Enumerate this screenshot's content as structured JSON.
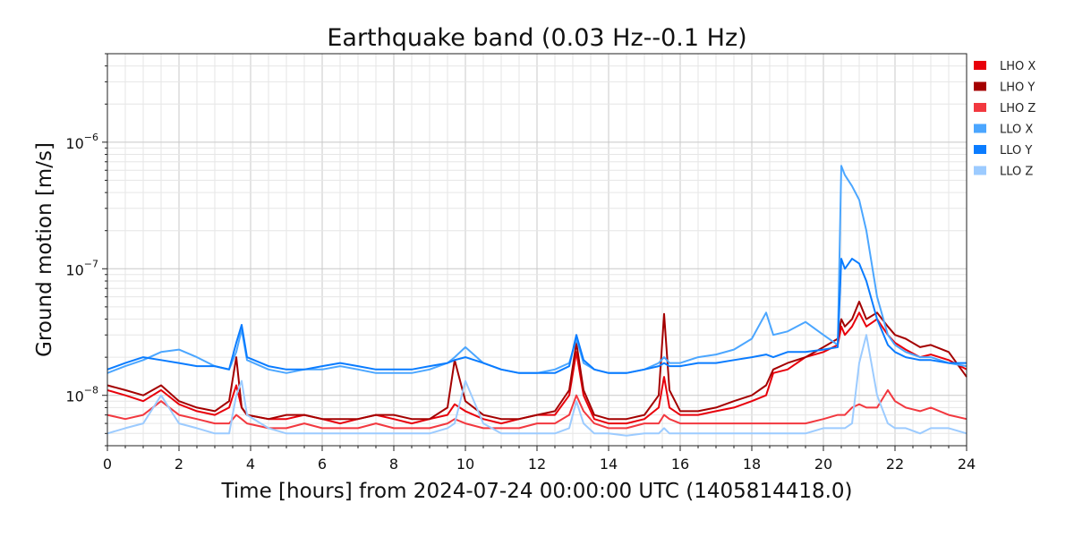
{
  "chart_data": {
    "type": "line",
    "title": "Earthquake band (0.03 Hz--0.1 Hz)",
    "xlabel": "Time [hours] from 2024-07-24 00:00:00 UTC (1405814418.0)",
    "ylabel": "Ground motion [m/s]",
    "xlim": [
      0,
      24
    ],
    "ylim": [
      4e-09,
      5e-06
    ],
    "yscale": "log",
    "grid": true,
    "legend_position": "right-outside-top",
    "x_ticks": [
      {
        "value": 0,
        "label": "0"
      },
      {
        "value": 2,
        "label": "2"
      },
      {
        "value": 4,
        "label": "4"
      },
      {
        "value": 6,
        "label": "6"
      },
      {
        "value": 8,
        "label": "8"
      },
      {
        "value": 10,
        "label": "10"
      },
      {
        "value": 12,
        "label": "12"
      },
      {
        "value": 14,
        "label": "14"
      },
      {
        "value": 16,
        "label": "16"
      },
      {
        "value": 18,
        "label": "18"
      },
      {
        "value": 20,
        "label": "20"
      },
      {
        "value": 22,
        "label": "22"
      },
      {
        "value": 24,
        "label": "24"
      }
    ],
    "y_ticks": [
      {
        "value": 1e-08,
        "base": "10",
        "exp": "−8"
      },
      {
        "value": 1e-07,
        "base": "10",
        "exp": "−7"
      },
      {
        "value": 1e-06,
        "base": "10",
        "exp": "−6"
      }
    ],
    "x": [
      0,
      0.5,
      1,
      1.5,
      2,
      2.5,
      3,
      3.4,
      3.6,
      3.75,
      3.9,
      4.5,
      5,
      5.5,
      6,
      6.5,
      7,
      7.5,
      8,
      8.5,
      9,
      9.5,
      9.7,
      10,
      10.5,
      11,
      11.5,
      12,
      12.5,
      12.9,
      13.1,
      13.3,
      13.6,
      14,
      14.5,
      15,
      15.4,
      15.55,
      15.7,
      16,
      16.5,
      17,
      17.5,
      18,
      18.4,
      18.6,
      19,
      19.5,
      20,
      20.4,
      20.5,
      20.6,
      20.8,
      21,
      21.2,
      21.5,
      21.8,
      22,
      22.3,
      22.7,
      23,
      23.5,
      24
    ],
    "series": [
      {
        "name": "LHO X",
        "color": "#e8000b",
        "values": [
          1.1e-08,
          1e-08,
          9e-09,
          1.1e-08,
          8.5e-09,
          7.5e-09,
          7e-09,
          8e-09,
          1.2e-08,
          8e-09,
          7e-09,
          6.5e-09,
          6.5e-09,
          7e-09,
          6.5e-09,
          6e-09,
          6.5e-09,
          7e-09,
          6.5e-09,
          6e-09,
          6.5e-09,
          7e-09,
          8.5e-09,
          7.5e-09,
          6.5e-09,
          6e-09,
          6.5e-09,
          7e-09,
          7e-09,
          1e-08,
          2.2e-08,
          1e-08,
          6.5e-09,
          6e-09,
          6e-09,
          6.5e-09,
          8e-09,
          1.4e-08,
          8e-09,
          7e-09,
          7e-09,
          7.5e-09,
          8e-09,
          9e-09,
          1e-08,
          1.5e-08,
          1.6e-08,
          2e-08,
          2.2e-08,
          2.5e-08,
          3.5e-08,
          3e-08,
          3.5e-08,
          4.5e-08,
          3.5e-08,
          4e-08,
          3e-08,
          2.6e-08,
          2.3e-08,
          2e-08,
          2.1e-08,
          1.9e-08,
          1.6e-08
        ]
      },
      {
        "name": "LHO Y",
        "color": "#a40000",
        "values": [
          1.2e-08,
          1.1e-08,
          1e-08,
          1.2e-08,
          9e-09,
          8e-09,
          7.5e-09,
          9e-09,
          2e-08,
          8e-09,
          7e-09,
          6.5e-09,
          7e-09,
          7e-09,
          6.5e-09,
          6.5e-09,
          6.5e-09,
          7e-09,
          7e-09,
          6.5e-09,
          6.5e-09,
          8e-09,
          1.9e-08,
          9e-09,
          7e-09,
          6.5e-09,
          6.5e-09,
          7e-09,
          7.5e-09,
          1.1e-08,
          2.6e-08,
          1.1e-08,
          7e-09,
          6.5e-09,
          6.5e-09,
          7e-09,
          1e-08,
          4.4e-08,
          1.1e-08,
          7.5e-09,
          7.5e-09,
          8e-09,
          9e-09,
          1e-08,
          1.2e-08,
          1.6e-08,
          1.8e-08,
          2e-08,
          2.4e-08,
          2.8e-08,
          4e-08,
          3.5e-08,
          4e-08,
          5.5e-08,
          4e-08,
          4.5e-08,
          3.5e-08,
          3e-08,
          2.8e-08,
          2.4e-08,
          2.5e-08,
          2.2e-08,
          1.4e-08
        ]
      },
      {
        "name": "LHO Z",
        "color": "#f2383f",
        "values": [
          7e-09,
          6.5e-09,
          7e-09,
          9e-09,
          7e-09,
          6.5e-09,
          6e-09,
          6e-09,
          7e-09,
          6.5e-09,
          6e-09,
          5.5e-09,
          5.5e-09,
          6e-09,
          5.5e-09,
          5.5e-09,
          5.5e-09,
          6e-09,
          5.5e-09,
          5.5e-09,
          5.5e-09,
          6e-09,
          6.5e-09,
          6e-09,
          5.5e-09,
          5.5e-09,
          5.5e-09,
          6e-09,
          6e-09,
          7e-09,
          1e-08,
          7.5e-09,
          6e-09,
          5.5e-09,
          5.5e-09,
          6e-09,
          6e-09,
          7e-09,
          6.5e-09,
          6e-09,
          6e-09,
          6e-09,
          6e-09,
          6e-09,
          6e-09,
          6e-09,
          6e-09,
          6e-09,
          6.5e-09,
          7e-09,
          7e-09,
          7e-09,
          8e-09,
          8.5e-09,
          8e-09,
          8e-09,
          1.1e-08,
          9e-09,
          8e-09,
          7.5e-09,
          8e-09,
          7e-09,
          6.5e-09
        ]
      },
      {
        "name": "LLO X",
        "color": "#4ba6ff",
        "values": [
          1.5e-08,
          1.7e-08,
          1.9e-08,
          2.2e-08,
          2.3e-08,
          2e-08,
          1.7e-08,
          1.6e-08,
          2.2e-08,
          3.3e-08,
          1.9e-08,
          1.6e-08,
          1.5e-08,
          1.6e-08,
          1.6e-08,
          1.7e-08,
          1.6e-08,
          1.5e-08,
          1.5e-08,
          1.5e-08,
          1.6e-08,
          1.8e-08,
          2e-08,
          2.4e-08,
          1.8e-08,
          1.6e-08,
          1.5e-08,
          1.5e-08,
          1.6e-08,
          1.8e-08,
          2.8e-08,
          1.8e-08,
          1.6e-08,
          1.5e-08,
          1.5e-08,
          1.6e-08,
          1.8e-08,
          2e-08,
          1.8e-08,
          1.8e-08,
          2e-08,
          2.1e-08,
          2.3e-08,
          2.8e-08,
          4.5e-08,
          3e-08,
          3.2e-08,
          3.8e-08,
          3e-08,
          2.5e-08,
          6.5e-07,
          5.5e-07,
          4.5e-07,
          3.5e-07,
          2e-07,
          6e-08,
          3e-08,
          2.5e-08,
          2.2e-08,
          2e-08,
          2e-08,
          1.8e-08,
          1.7e-08
        ]
      },
      {
        "name": "LLO Y",
        "color": "#0a7cff",
        "values": [
          1.6e-08,
          1.8e-08,
          2e-08,
          1.9e-08,
          1.8e-08,
          1.7e-08,
          1.7e-08,
          1.6e-08,
          2.6e-08,
          3.6e-08,
          2e-08,
          1.7e-08,
          1.6e-08,
          1.6e-08,
          1.7e-08,
          1.8e-08,
          1.7e-08,
          1.6e-08,
          1.6e-08,
          1.6e-08,
          1.7e-08,
          1.8e-08,
          1.9e-08,
          2e-08,
          1.8e-08,
          1.6e-08,
          1.5e-08,
          1.5e-08,
          1.5e-08,
          1.7e-08,
          3e-08,
          1.9e-08,
          1.6e-08,
          1.5e-08,
          1.5e-08,
          1.6e-08,
          1.7e-08,
          1.8e-08,
          1.7e-08,
          1.7e-08,
          1.8e-08,
          1.8e-08,
          1.9e-08,
          2e-08,
          2.1e-08,
          2e-08,
          2.2e-08,
          2.2e-08,
          2.3e-08,
          2.4e-08,
          1.2e-07,
          1e-07,
          1.2e-07,
          1.1e-07,
          8e-08,
          4e-08,
          2.5e-08,
          2.2e-08,
          2e-08,
          1.9e-08,
          1.9e-08,
          1.8e-08,
          1.8e-08
        ]
      },
      {
        "name": "LLO Z",
        "color": "#9ccbff",
        "values": [
          5e-09,
          5.5e-09,
          6e-09,
          1e-08,
          6e-09,
          5.5e-09,
          5e-09,
          5e-09,
          1e-08,
          1.3e-08,
          7e-09,
          5.5e-09,
          5e-09,
          5e-09,
          5e-09,
          5e-09,
          5e-09,
          5e-09,
          5e-09,
          5e-09,
          5e-09,
          5.5e-09,
          6e-09,
          1.3e-08,
          6e-09,
          5e-09,
          5e-09,
          5e-09,
          5e-09,
          5.5e-09,
          9e-09,
          6e-09,
          5e-09,
          5e-09,
          4.8e-09,
          5e-09,
          5e-09,
          5.5e-09,
          5e-09,
          5e-09,
          5e-09,
          5e-09,
          5e-09,
          5e-09,
          5e-09,
          5e-09,
          5e-09,
          5e-09,
          5.5e-09,
          5.5e-09,
          5.5e-09,
          5.5e-09,
          6e-09,
          1.8e-08,
          3e-08,
          1e-08,
          6e-09,
          5.5e-09,
          5.5e-09,
          5e-09,
          5.5e-09,
          5.5e-09,
          5e-09
        ]
      }
    ]
  }
}
